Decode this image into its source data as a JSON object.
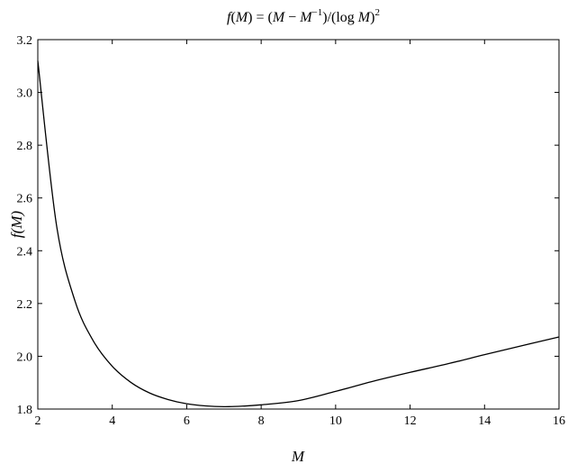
{
  "chart_data": {
    "type": "line",
    "title": "f(M) = (M − M^−1)/(log M)^2",
    "title_parts": {
      "lhs_fn": "f",
      "lhs_arg": "M",
      "eq": " = (",
      "m1": "M",
      "minus": " − ",
      "m2": "M",
      "exp1": "−1",
      "mid": ")/(log ",
      "m3": "M",
      "close": ")",
      "exp2": "2"
    },
    "xlabel": "M",
    "ylabel": "f(M)",
    "xlim": [
      2,
      16
    ],
    "ylim": [
      1.8,
      3.2
    ],
    "xticks": [
      2,
      4,
      6,
      8,
      10,
      12,
      14,
      16
    ],
    "yticks": [
      1.8,
      2.0,
      2.2,
      2.4,
      2.6,
      2.8,
      3.0,
      3.2
    ],
    "xtick_labels": [
      "2",
      "4",
      "6",
      "8",
      "10",
      "12",
      "14",
      "16"
    ],
    "ytick_labels": [
      "1.8",
      "2.0",
      "2.2",
      "2.4",
      "2.6",
      "2.8",
      "3.0",
      "3.2"
    ],
    "grid": false,
    "line_color": "#000000",
    "series": [
      {
        "x": [
          2,
          2.5,
          3,
          3.5,
          4,
          4.5,
          5,
          5.5,
          6,
          6.5,
          7,
          7.5,
          8,
          9,
          10,
          11,
          12,
          13,
          14,
          15,
          16
        ],
        "values": [
          3.12,
          2.499,
          2.209,
          2.056,
          1.962,
          1.901,
          1.861,
          1.836,
          1.82,
          1.812,
          1.809,
          1.811,
          1.816,
          1.832,
          1.867,
          1.905,
          1.939,
          1.971,
          2.006,
          2.04,
          2.073
        ]
      }
    ]
  }
}
